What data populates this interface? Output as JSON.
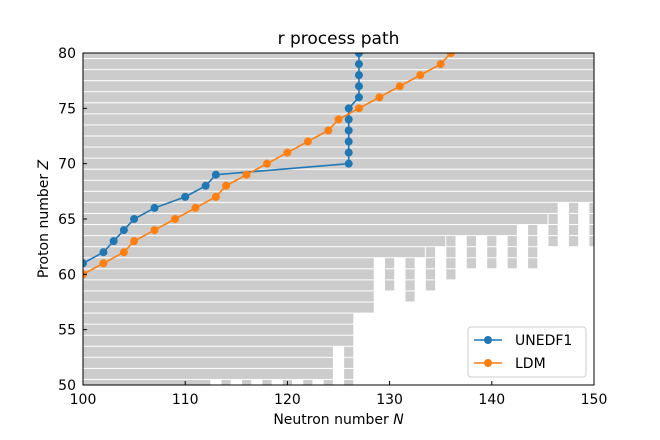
{
  "chart_data": {
    "type": "line",
    "title": "r process path",
    "xlabel": "Neutron number",
    "xlabel_var": "N",
    "ylabel": "Proton number",
    "ylabel_var": "Z",
    "xlim": [
      100,
      150
    ],
    "ylim": [
      50,
      80
    ],
    "xticks": [
      "100",
      "110",
      "120",
      "130",
      "140",
      "150"
    ],
    "yticks": [
      "50",
      "55",
      "60",
      "65",
      "70",
      "75",
      "80"
    ],
    "legend": "lower-right",
    "grid": false,
    "background_nuclei": {
      "color": "#cccccc",
      "rows": [
        {
          "z": 50,
          "segments": [
            [
              100,
              112
            ],
            [
              114,
              114
            ],
            [
              116,
              116
            ],
            [
              118,
              118
            ],
            [
              120,
              120
            ],
            [
              122,
              122
            ],
            [
              124,
              124
            ],
            [
              126,
              126
            ]
          ]
        },
        {
          "z": 51,
          "segments": [
            [
              100,
              124
            ],
            [
              126,
              126
            ]
          ]
        },
        {
          "z": 52,
          "segments": [
            [
              100,
              124
            ],
            [
              126,
              126
            ]
          ]
        },
        {
          "z": 53,
          "segments": [
            [
              100,
              124
            ],
            [
              126,
              126
            ]
          ]
        },
        {
          "z": 54,
          "segments": [
            [
              100,
              126
            ]
          ]
        },
        {
          "z": 55,
          "segments": [
            [
              100,
              126
            ]
          ]
        },
        {
          "z": 56,
          "segments": [
            [
              100,
              126
            ]
          ]
        },
        {
          "z": 57,
          "segments": [
            [
              100,
              128
            ]
          ]
        },
        {
          "z": 58,
          "segments": [
            [
              100,
              128
            ],
            [
              132,
              132
            ]
          ]
        },
        {
          "z": 59,
          "segments": [
            [
              100,
              128
            ],
            [
              130,
              130
            ],
            [
              132,
              132
            ],
            [
              134,
              134
            ]
          ]
        },
        {
          "z": 60,
          "segments": [
            [
              100,
              128
            ],
            [
              130,
              130
            ],
            [
              132,
              132
            ],
            [
              134,
              134
            ],
            [
              136,
              136
            ]
          ]
        },
        {
          "z": 61,
          "segments": [
            [
              100,
              128
            ],
            [
              130,
              130
            ],
            [
              132,
              132
            ],
            [
              134,
              134
            ],
            [
              136,
              136
            ],
            [
              138,
              138
            ],
            [
              140,
              140
            ],
            [
              142,
              142
            ],
            [
              144,
              144
            ]
          ]
        },
        {
          "z": 62,
          "segments": [
            [
              100,
              133
            ],
            [
              134,
              134
            ],
            [
              136,
              136
            ],
            [
              138,
              138
            ],
            [
              140,
              140
            ],
            [
              142,
              142
            ],
            [
              144,
              144
            ]
          ]
        },
        {
          "z": 63,
          "segments": [
            [
              100,
              135
            ],
            [
              136,
              136
            ],
            [
              138,
              138
            ],
            [
              140,
              140
            ],
            [
              142,
              142
            ],
            [
              144,
              144
            ],
            [
              146,
              146
            ],
            [
              148,
              148
            ],
            [
              150,
              150
            ]
          ]
        },
        {
          "z": 64,
          "segments": [
            [
              100,
              142
            ],
            [
              144,
              144
            ],
            [
              146,
              146
            ],
            [
              148,
              148
            ],
            [
              150,
              150
            ]
          ]
        },
        {
          "z": 65,
          "segments": [
            [
              100,
              145
            ],
            [
              146,
              146
            ],
            [
              148,
              148
            ],
            [
              150,
              150
            ]
          ]
        },
        {
          "z": 66,
          "segments": [
            [
              100,
              146
            ],
            [
              148,
              148
            ],
            [
              150,
              150
            ]
          ]
        },
        {
          "z": 67,
          "segments": [
            [
              100,
              150
            ]
          ]
        },
        {
          "z": 68,
          "segments": [
            [
              100,
              150
            ]
          ]
        },
        {
          "z": 69,
          "segments": [
            [
              100,
              150
            ]
          ]
        },
        {
          "z": 70,
          "segments": [
            [
              100,
              150
            ]
          ]
        },
        {
          "z": 71,
          "segments": [
            [
              100,
              150
            ]
          ]
        },
        {
          "z": 72,
          "segments": [
            [
              100,
              150
            ]
          ]
        },
        {
          "z": 73,
          "segments": [
            [
              100,
              150
            ]
          ]
        },
        {
          "z": 74,
          "segments": [
            [
              100,
              150
            ]
          ]
        },
        {
          "z": 75,
          "segments": [
            [
              100,
              150
            ]
          ]
        },
        {
          "z": 76,
          "segments": [
            [
              100,
              150
            ]
          ]
        },
        {
          "z": 77,
          "segments": [
            [
              100,
              150
            ]
          ]
        },
        {
          "z": 78,
          "segments": [
            [
              100,
              150
            ]
          ]
        },
        {
          "z": 79,
          "segments": [
            [
              100,
              150
            ]
          ]
        },
        {
          "z": 80,
          "segments": [
            [
              100,
              150
            ]
          ]
        }
      ]
    },
    "series": [
      {
        "name": "UNEDF1",
        "color": "#1f77b4",
        "points": [
          [
            100,
            61
          ],
          [
            102,
            62
          ],
          [
            103,
            63
          ],
          [
            104,
            64
          ],
          [
            105,
            65
          ],
          [
            107,
            66
          ],
          [
            110,
            67
          ],
          [
            112,
            68
          ],
          [
            113,
            69
          ],
          [
            126,
            70
          ],
          [
            126,
            71
          ],
          [
            126,
            72
          ],
          [
            126,
            73
          ],
          [
            126,
            74
          ],
          [
            126,
            75
          ],
          [
            127,
            76
          ],
          [
            127,
            77
          ],
          [
            127,
            78
          ],
          [
            127,
            79
          ],
          [
            127,
            80
          ]
        ]
      },
      {
        "name": "LDM",
        "color": "#ff7f0e",
        "points": [
          [
            100,
            60
          ],
          [
            102,
            61
          ],
          [
            104,
            62
          ],
          [
            105,
            63
          ],
          [
            107,
            64
          ],
          [
            109,
            65
          ],
          [
            111,
            66
          ],
          [
            113,
            67
          ],
          [
            114,
            68
          ],
          [
            116,
            69
          ],
          [
            118,
            70
          ],
          [
            120,
            71
          ],
          [
            122,
            72
          ],
          [
            124,
            73
          ],
          [
            125,
            74
          ],
          [
            127,
            75
          ],
          [
            129,
            76
          ],
          [
            131,
            77
          ],
          [
            133,
            78
          ],
          [
            135,
            79
          ],
          [
            136,
            80
          ]
        ]
      }
    ]
  }
}
